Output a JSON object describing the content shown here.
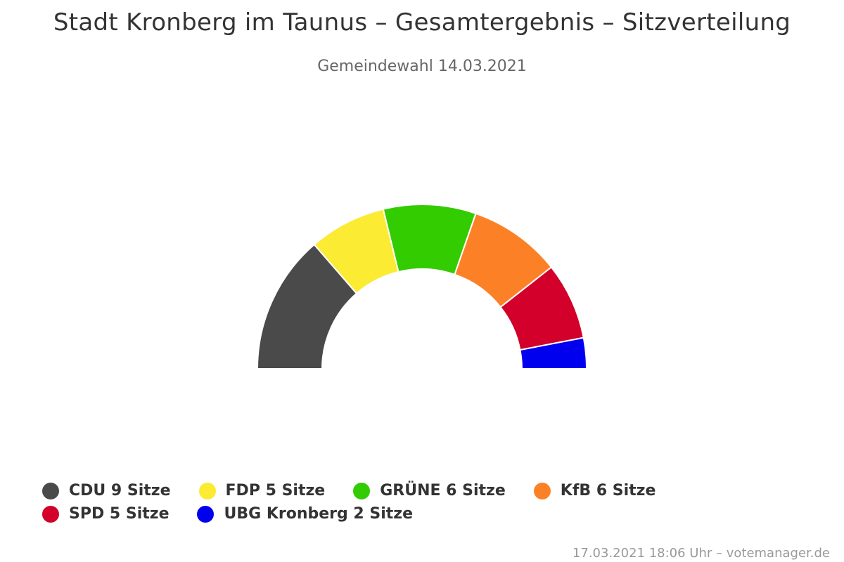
{
  "title": "Stadt Kronberg im Taunus – Gesamtergebnis – Sitzverteilung",
  "subtitle": "Gemeindewahl 14.03.2021",
  "credits": "17.03.2021 18:06 Uhr – votemanager.de",
  "chart_data": {
    "type": "pie",
    "variant": "semi-circle donut (parliament seat distribution)",
    "categories": [
      "CDU",
      "FDP",
      "GRÜNE",
      "KfB",
      "SPD",
      "UBG Kronberg"
    ],
    "values": [
      9,
      5,
      6,
      6,
      5,
      2
    ],
    "unit": "Sitze",
    "colors": [
      "#4a4a4a",
      "#fbeb33",
      "#33cc00",
      "#fc8126",
      "#d2002a",
      "#0000ee"
    ],
    "legend_labels": [
      "CDU 9 Sitze",
      "FDP 5 Sitze",
      "GRÜNE 6 Sitze",
      "KfB 6 Sitze",
      "SPD 5 Sitze",
      "UBG Kronberg 2 Sitze"
    ],
    "legend_position": "bottom",
    "data_labels": false
  }
}
